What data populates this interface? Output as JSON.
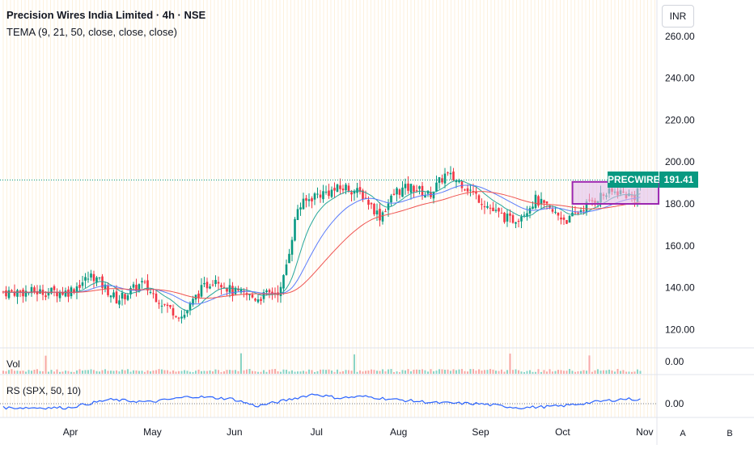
{
  "header": {
    "title": "Precision Wires India Limited · 4h · NSE",
    "indicator": "TEMA (9, 21, 50, close, close, close)"
  },
  "currency_button": "INR",
  "price_tag": {
    "symbol": "PRECWIRE",
    "price": "191.41"
  },
  "panes": {
    "volume_label": "Vol",
    "rs_label": "RS (SPX, 50, 10)"
  },
  "corner_buttons": {
    "auto": "A",
    "b": "B"
  },
  "colors": {
    "up": "#089981",
    "down": "#f23645",
    "tema_fast": "#26a69a",
    "tema_mid": "#5b7cfa",
    "tema_slow": "#ef5350",
    "box": "#9c27b0",
    "box_fill": "#e1bee7",
    "rs_line": "#2962ff",
    "grid_vertical": "#fde7c2"
  },
  "chart_data": [
    {
      "type": "candlestick",
      "title": "Precision Wires India Limited · 4h · NSE",
      "ylim": [
        110,
        270
      ],
      "y_ticks": [
        "260.00",
        "240.00",
        "220.00",
        "200.00",
        "180.00",
        "160.00",
        "140.00",
        "120.00"
      ],
      "x_ticks": [
        "Apr",
        "May",
        "Jun",
        "Jul",
        "Aug",
        "Sep",
        "Oct",
        "Nov"
      ],
      "last_price": 191.41,
      "close_path": {
        "months": [
          2.0,
          2.3,
          2.6,
          2.9,
          3.2,
          3.4,
          3.6,
          3.8,
          4.0,
          4.3,
          4.6,
          4.8,
          5.0,
          5.2,
          5.4,
          5.6,
          5.8,
          6.0,
          6.2,
          6.4,
          6.6,
          6.8,
          7.0,
          7.2,
          7.4,
          7.5,
          7.7,
          7.9,
          8.1,
          8.3,
          8.5,
          8.7,
          8.9,
          9.0
        ],
        "close": [
          138,
          146,
          134,
          142,
          131,
          126,
          138,
          145,
          138,
          135,
          139,
          178,
          184,
          186,
          188,
          184,
          174,
          186,
          188,
          184,
          194,
          190,
          183,
          176,
          172,
          174,
          182,
          176,
          172,
          179,
          184,
          186,
          183,
          191.41
        ]
      },
      "tema_series": [
        {
          "name": "TEMA 9"
        },
        {
          "name": "TEMA 21"
        },
        {
          "name": "TEMA 50"
        }
      ],
      "consolidation_box": {
        "from_month": 8.15,
        "to_month": 9.2,
        "low": 180,
        "high": 190.5
      }
    },
    {
      "type": "bar",
      "title": "Vol",
      "y_ticks": [
        "0.00"
      ]
    },
    {
      "type": "line",
      "title": "RS (SPX, 50, 10)",
      "y_ticks": [
        "0.00"
      ],
      "months": [
        2.0,
        2.5,
        3.0,
        3.5,
        4.0,
        4.3,
        4.6,
        5.0,
        5.3,
        5.6,
        6.0,
        6.5,
        7.0,
        7.5,
        8.0,
        8.5,
        8.8,
        9.0
      ],
      "values": [
        -0.5,
        0.5,
        0.2,
        0.9,
        0.6,
        -0.3,
        0.3,
        1.2,
        0.7,
        0.9,
        0.5,
        0.1,
        0.0,
        -0.5,
        -0.3,
        0.3,
        0.6,
        0.5
      ]
    }
  ]
}
